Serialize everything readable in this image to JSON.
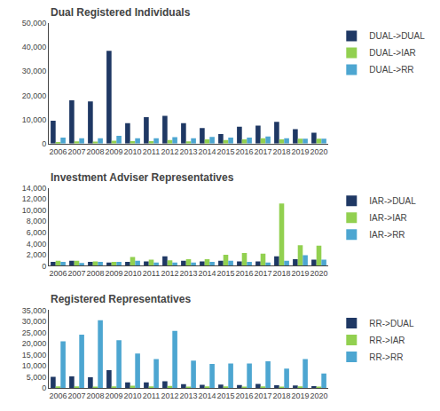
{
  "chart_data": [
    {
      "type": "bar",
      "title": "Dual Registered Individuals",
      "categories": [
        "2006",
        "2007",
        "2008",
        "2009",
        "2010",
        "2011",
        "2012",
        "2013",
        "2014",
        "2015",
        "2016",
        "2017",
        "2018",
        "2019",
        "2020"
      ],
      "series": [
        {
          "name": "DUAL->DUAL",
          "color": "#1f3864",
          "values": [
            9500,
            18000,
            17500,
            38500,
            8500,
            11000,
            11500,
            8500,
            6500,
            4000,
            7000,
            7500,
            9000,
            6000,
            4500
          ]
        },
        {
          "name": "DUAL->IAR",
          "color": "#92d050",
          "values": [
            700,
            900,
            800,
            1200,
            1000,
            1000,
            1500,
            900,
            1800,
            1500,
            1800,
            2200,
            1800,
            2000,
            2000
          ]
        },
        {
          "name": "DUAL->RR",
          "color": "#4da6d1",
          "values": [
            2500,
            2200,
            2200,
            3200,
            2200,
            2200,
            2700,
            2200,
            2800,
            2500,
            2500,
            3000,
            2200,
            2000,
            2000
          ]
        }
      ],
      "ylim": [
        0,
        50000
      ],
      "yticks": [
        0,
        {
          "value": 10000,
          "label": "10,000"
        },
        {
          "value": 20000,
          "label": "20,000"
        },
        {
          "value": 30000,
          "label": "30,000"
        },
        {
          "value": 40000,
          "label": "40,000"
        },
        {
          "value": 50000,
          "label": "50,000"
        }
      ],
      "grid": false,
      "legend": "upper right"
    },
    {
      "type": "bar",
      "title": "Investment Adviser Representatives",
      "categories": [
        "2006",
        "2007",
        "2008",
        "2009",
        "2010",
        "2011",
        "2012",
        "2013",
        "2014",
        "2015",
        "2016",
        "2017",
        "2018",
        "2019",
        "2020"
      ],
      "series": [
        {
          "name": "IAR->DUAL",
          "color": "#1f3864",
          "values": [
            700,
            900,
            700,
            600,
            700,
            800,
            1700,
            900,
            800,
            900,
            800,
            800,
            1700,
            1200,
            1100
          ]
        },
        {
          "name": "IAR->IAR",
          "color": "#92d050",
          "values": [
            900,
            900,
            800,
            700,
            1600,
            1100,
            1000,
            1200,
            1200,
            2000,
            2300,
            2200,
            11200,
            3700,
            3600
          ]
        },
        {
          "name": "IAR->RR",
          "color": "#4da6d1",
          "values": [
            700,
            500,
            700,
            700,
            900,
            600,
            600,
            600,
            700,
            900,
            700,
            600,
            900,
            1900,
            1100
          ]
        }
      ],
      "ylim": [
        0,
        14000
      ],
      "yticks": [
        0,
        {
          "value": 2000,
          "label": "2,000"
        },
        {
          "value": 4000,
          "label": "4,000"
        },
        {
          "value": 6000,
          "label": "6,000"
        },
        {
          "value": 8000,
          "label": "8,000"
        },
        {
          "value": 10000,
          "label": "10,000"
        },
        {
          "value": 12000,
          "label": "12,000"
        },
        {
          "value": 14000,
          "label": "14,000"
        }
      ],
      "grid": false,
      "legend": "upper right"
    },
    {
      "type": "bar",
      "title": "Registered Representatives",
      "categories": [
        "2006",
        "2007",
        "2008",
        "2009",
        "2010",
        "2011",
        "2012",
        "2013",
        "2014",
        "2015",
        "2016",
        "2017",
        "2018",
        "2019",
        "2020"
      ],
      "series": [
        {
          "name": "RR->DUAL",
          "color": "#1f3864",
          "values": [
            5000,
            5200,
            4800,
            8000,
            2500,
            2500,
            3000,
            1700,
            1400,
            1500,
            1300,
            1800,
            1200,
            1100,
            800
          ]
        },
        {
          "name": "RR->IAR",
          "color": "#92d050",
          "values": [
            700,
            700,
            600,
            700,
            1000,
            700,
            900,
            600,
            700,
            700,
            600,
            700,
            600,
            700,
            600
          ]
        },
        {
          "name": "RR->RR",
          "color": "#4da6d1",
          "values": [
            21000,
            24000,
            30500,
            21500,
            15500,
            13000,
            25700,
            12300,
            10800,
            11000,
            11000,
            12000,
            8700,
            13000,
            6500
          ]
        }
      ],
      "ylim": [
        0,
        35000
      ],
      "yticks": [
        0,
        {
          "value": 5000,
          "label": "5,000"
        },
        {
          "value": 10000,
          "label": "10,000"
        },
        {
          "value": 15000,
          "label": "15,000"
        },
        {
          "value": 20000,
          "label": "20,000"
        },
        {
          "value": 25000,
          "label": "25,000"
        },
        {
          "value": 30000,
          "label": "30,000"
        },
        {
          "value": 35000,
          "label": "35,000"
        }
      ],
      "grid": false,
      "legend": "upper right"
    }
  ]
}
